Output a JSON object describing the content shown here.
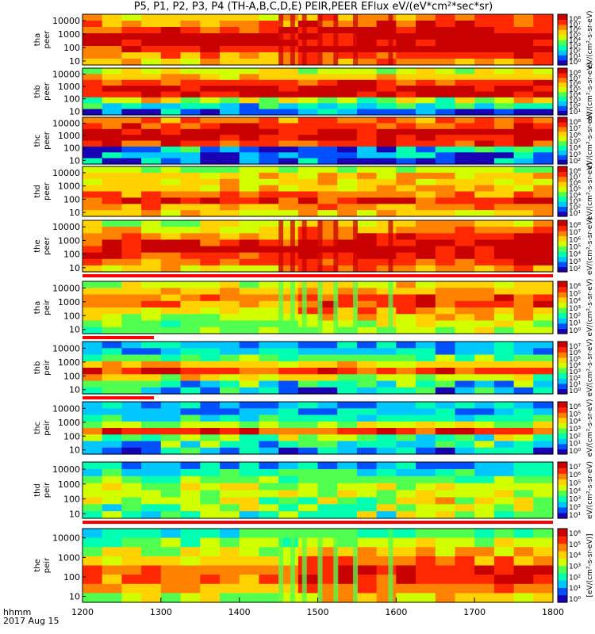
{
  "title": "P5, P1, P2, P3, P4 (TH-A,B,C,D,E) PEIR,PEER EFlux eV/(eV*cm²*sec*sr)",
  "footer": {
    "line1": "hhmm",
    "line2": "2017 Aug 15"
  },
  "chart_data": {
    "type": "heatmap",
    "title": "P5, P1, P2, P3, P4 (TH-A,B,C,D,E) PEIR,PEER EFlux eV/(eV*cm²*sec*sr)",
    "x_ticks": [
      "1200",
      "1300",
      "1400",
      "1500",
      "1600",
      "1700",
      "1800"
    ],
    "x_range": [
      1200,
      1800
    ],
    "y_scale": "log",
    "y_range": [
      5,
      30000
    ],
    "colormap": [
      "#1a00b4",
      "#0050ff",
      "#00c8ff",
      "#00ffb0",
      "#50ff50",
      "#d2ff00",
      "#ffd200",
      "#ff8200",
      "#ff2800",
      "#c80000"
    ],
    "colorbar_label": "[eV/(cm²-s-sr-eV)]",
    "panels": [
      {
        "label": "tha peer",
        "y_ticks": [
          "10",
          "100",
          "1000",
          "10000"
        ],
        "cb_ticks": [
          "10⁸",
          "10⁷",
          "10⁶",
          "10⁵",
          "10⁴",
          "10³",
          "10²",
          "10¹",
          "10⁰"
        ],
        "cb_label": "eV/(cm²-s-sr-eV)",
        "bar": "none"
      },
      {
        "label": "thb peer",
        "y_ticks": [
          "10",
          "100",
          "1000",
          "10000"
        ],
        "cb_ticks": [
          "10⁸",
          "10⁷",
          "10⁶",
          "10⁵",
          "10⁴",
          "10³",
          "10²",
          "10¹"
        ],
        "cb_label": "eV/(cm²-s-sr-eV)",
        "bar": "none"
      },
      {
        "label": "thc peer",
        "y_ticks": [
          "10",
          "100",
          "1000",
          "10000"
        ],
        "cb_ticks": [
          "10⁸",
          "10⁷",
          "10⁶",
          "10⁵",
          "10⁴",
          "10³",
          "10²"
        ],
        "cb_label": "eV/(cm²-s-sr-eV)",
        "bar": "none"
      },
      {
        "label": "thd peer",
        "y_ticks": [
          "10",
          "100",
          "1000",
          "10000"
        ],
        "cb_ticks": [
          "10⁸",
          "10⁷",
          "10⁶",
          "10⁵",
          "10⁴",
          "10³",
          "10²",
          "10¹"
        ],
        "cb_label": "eV/(cm²-s-sr-eV)",
        "bar": "none"
      },
      {
        "label": "the peer",
        "y_ticks": [
          "10",
          "100",
          "1000",
          "10000"
        ],
        "cb_ticks": [
          "10⁸",
          "10⁷",
          "10⁶",
          "10⁵",
          "10⁴",
          "10³",
          "10²"
        ],
        "cb_label": "eV/(cm²-s-sr-eV)",
        "bar": "full"
      },
      {
        "label": "tha peir",
        "y_ticks": [
          "10",
          "100",
          "1000",
          "10000"
        ],
        "cb_ticks": [
          "10⁶",
          "10⁵",
          "10⁴",
          "10³",
          "10²",
          "10¹",
          "10⁰"
        ],
        "cb_label": "eV/(cm²-s-sr-eV)",
        "bar": "partial"
      },
      {
        "label": "thb peir",
        "y_ticks": [
          "10",
          "100",
          "1000",
          "10000"
        ],
        "cb_ticks": [
          "10⁷",
          "10⁶",
          "10⁵",
          "10⁴",
          "10³",
          "10²",
          "10¹",
          "10⁰"
        ],
        "cb_label": "eV/(cm²-s-sr-eV)",
        "bar": "partial"
      },
      {
        "label": "thc peir",
        "y_ticks": [
          "10",
          "100",
          "1000",
          "10000"
        ],
        "cb_ticks": [
          "10⁶",
          "10⁵",
          "10⁴",
          "10³",
          "10²",
          "10¹",
          "10⁰"
        ],
        "cb_label": "eV/(cm²-s-sr-eV)",
        "bar": "none"
      },
      {
        "label": "thd peir",
        "y_ticks": [
          "10",
          "100",
          "1000",
          "10000"
        ],
        "cb_ticks": [
          "10⁷",
          "10⁶",
          "10⁵",
          "10⁴",
          "10³",
          "10²",
          "10¹"
        ],
        "cb_label": "eV/(cm²-s-sr-eV)",
        "bar": "full"
      },
      {
        "label": "the peir",
        "y_ticks": [
          "10",
          "100",
          "1000",
          "10000"
        ],
        "cb_ticks": [
          "10⁶",
          "10⁵",
          "10⁴",
          "10³",
          "10²",
          "10¹",
          "10⁰"
        ],
        "cb_label": "[eV/(cm²-s-sr-eV)]",
        "bar": "none"
      }
    ]
  }
}
